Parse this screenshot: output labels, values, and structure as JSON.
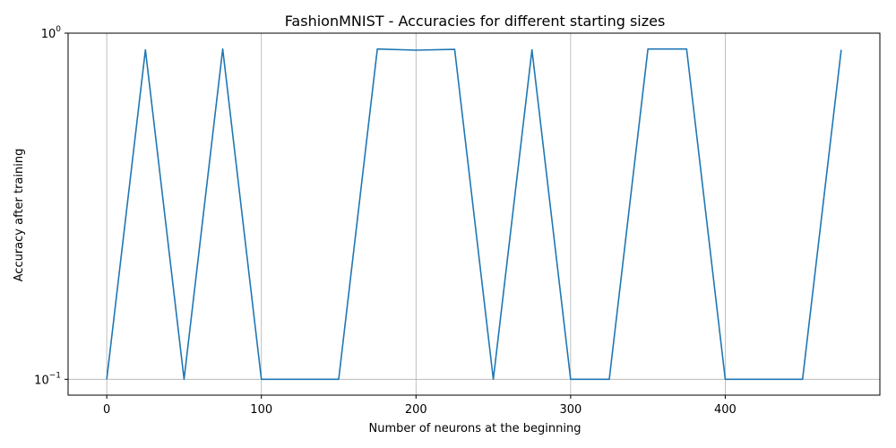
{
  "chart_data": {
    "type": "line",
    "title": "FashionMNIST - Accuracies for different starting sizes",
    "xlabel": "Number of neurons at the beginning",
    "ylabel": "Accuracy after training",
    "yscale": "log",
    "xlim": [
      -25,
      500
    ],
    "ylim": [
      0.09,
      1.0
    ],
    "xticks": [
      0,
      100,
      200,
      300,
      400
    ],
    "yticks": [
      {
        "value": 0.1,
        "base": "10",
        "exp": "−1"
      },
      {
        "value": 1.0,
        "base": "10",
        "exp": "0"
      }
    ],
    "grid": true,
    "line_color": "#1f77b4",
    "series": [
      {
        "x": [
          0,
          25,
          50,
          75,
          100,
          125,
          150,
          175,
          200,
          225,
          250,
          275,
          300,
          325,
          350,
          375,
          400,
          425,
          450,
          475
        ],
        "values": [
          0.1,
          0.895,
          0.1,
          0.9,
          0.1,
          0.1,
          0.1,
          0.9,
          0.893,
          0.898,
          0.1,
          0.895,
          0.1,
          0.1,
          0.9,
          0.9,
          0.1,
          0.1,
          0.1,
          0.895
        ]
      }
    ]
  }
}
